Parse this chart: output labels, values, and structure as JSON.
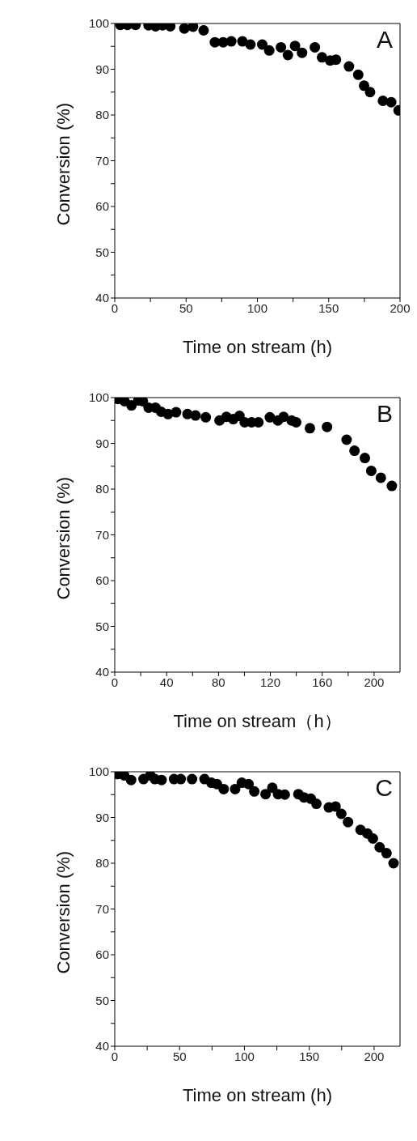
{
  "chart_data": [
    {
      "type": "scatter",
      "xlabel": "Time on stream (h)",
      "ylabel": "Conversion (%)",
      "annotations": [
        "A"
      ],
      "marker": "circle",
      "xlim": [
        0,
        200
      ],
      "xticks": [
        0,
        {
          "value": 25,
          "label": null
        },
        50,
        {
          "value": 75,
          "label": null
        },
        100,
        {
          "value": 125,
          "label": null
        },
        150,
        {
          "value": 175,
          "label": null
        },
        200
      ],
      "ylim": [
        40,
        100
      ],
      "yticks": [
        40,
        {
          "value": 45,
          "label": null
        },
        50,
        {
          "value": 55,
          "label": null
        },
        60,
        {
          "value": 65,
          "label": null
        },
        70,
        {
          "value": 75,
          "label": null
        },
        80,
        {
          "value": 85,
          "label": null
        },
        90,
        {
          "value": 95,
          "label": null
        },
        100
      ],
      "series": [
        {
          "color": "#000000",
          "x": [
            3.9,
            8.9,
            14.6,
            23.7,
            28.6,
            33.5,
            38.9,
            48.8,
            54.9,
            62.3,
            70.2,
            76.0,
            81.7,
            89.5,
            95.1,
            103.4,
            108.3,
            116.5,
            121.4,
            126.4,
            131.3,
            140.3,
            145.3,
            151.0,
            155.1,
            164.2,
            170.7,
            174.8,
            179.0,
            188.0,
            193.8,
            199
          ],
          "values": [
            99.7,
            99.7,
            99.7,
            99.6,
            99.4,
            99.6,
            99.4,
            98.9,
            99.3,
            98.5,
            95.9,
            95.9,
            96.1,
            96.1,
            95.4,
            95.4,
            94.1,
            94.8,
            93.1,
            95.1,
            93.6,
            94.8,
            92.6,
            91.9,
            92.1,
            90.6,
            88.8,
            86.4,
            85.0,
            83.1,
            82.8,
            81
          ]
        }
      ]
    },
    {
      "type": "scatter",
      "xlabel": "Time on stream（h）",
      "ylabel": "Conversion (%)",
      "annotations": [
        "B"
      ],
      "marker": "circle",
      "xlim": [
        0,
        220
      ],
      "xticks": [
        0,
        {
          "value": 20,
          "label": null
        },
        40,
        {
          "value": 60,
          "label": null
        },
        80,
        {
          "value": 100,
          "label": null
        },
        120,
        {
          "value": 140,
          "label": null
        },
        160,
        {
          "value": 180,
          "label": null
        },
        200
      ],
      "ylim": [
        40,
        100
      ],
      "yticks": [
        40,
        {
          "value": 45,
          "label": null
        },
        50,
        {
          "value": 55,
          "label": null
        },
        60,
        {
          "value": 65,
          "label": null
        },
        70,
        {
          "value": 75,
          "label": null
        },
        80,
        {
          "value": 85,
          "label": null
        },
        90,
        {
          "value": 95,
          "label": null
        },
        100
      ],
      "series": [
        {
          "color": "#000000",
          "x": [
            2.3,
            7.6,
            12.9,
            18.2,
            21.7,
            26.1,
            31.4,
            35.8,
            41.1,
            47.3,
            56.1,
            62.3,
            70.2,
            80.8,
            86.1,
            91.4,
            96.2,
            100.2,
            105.5,
            110.8,
            119.6,
            125.8,
            130.2,
            136.4,
            139.9,
            150.5,
            163.7,
            178.8,
            184.9,
            192.9,
            197.8,
            205.2,
            213.7
          ],
          "values": [
            99.7,
            99.2,
            98.3,
            99.4,
            99.2,
            97.8,
            97.8,
            96.9,
            96.4,
            96.8,
            96.4,
            96.1,
            95.7,
            95.0,
            95.8,
            95.3,
            96.0,
            94.6,
            94.6,
            94.6,
            95.7,
            95.0,
            95.8,
            95.0,
            94.6,
            93.3,
            93.6,
            90.8,
            88.4,
            86.8,
            84.0,
            82.5,
            80.7
          ]
        }
      ]
    },
    {
      "type": "scatter",
      "xlabel": "Time on stream (h)",
      "ylabel": "Conversion (%)",
      "annotations": [
        "C"
      ],
      "marker": "circle",
      "xlim": [
        0,
        220
      ],
      "xticks": [
        0,
        {
          "value": 25,
          "label": null
        },
        50,
        {
          "value": 75,
          "label": null
        },
        100,
        {
          "value": 125,
          "label": null
        },
        150,
        {
          "value": 175,
          "label": null
        },
        200
      ],
      "ylim": [
        40,
        100
      ],
      "yticks": [
        40,
        {
          "value": 45,
          "label": null
        },
        50,
        {
          "value": 55,
          "label": null
        },
        60,
        {
          "value": 65,
          "label": null
        },
        70,
        {
          "value": 75,
          "label": null
        },
        80,
        {
          "value": 85,
          "label": null
        },
        90,
        {
          "value": 95,
          "label": null
        },
        100
      ],
      "series": [
        {
          "color": "#000000",
          "x": [
            2.1,
            7.3,
            12.6,
            22.2,
            27.4,
            30.9,
            36.1,
            45.7,
            50.9,
            56.2,
            59.6,
            69.2,
            74.5,
            78.8,
            84.0,
            92.8,
            98.0,
            103.2,
            107.6,
            116.3,
            121.5,
            125.9,
            131.1,
            141.6,
            145.9,
            151.2,
            155.5,
            165.1,
            170.3,
            174.7,
            179.9,
            189.5,
            194.8,
            199.1,
            204.3,
            209.6,
            215
          ],
          "values": [
            99.5,
            99.2,
            98.2,
            98.4,
            99.2,
            98.4,
            98.2,
            98.4,
            98.4,
            null,
            98.4,
            98.4,
            97.6,
            97.3,
            96.2,
            96.2,
            97.6,
            97.3,
            95.7,
            95.1,
            96.5,
            95.1,
            95.0,
            95.1,
            94.4,
            94.1,
            93.0,
            92.2,
            92.4,
            90.8,
            89.0,
            87.3,
            86.5,
            85.4,
            83.5,
            82.2,
            80
          ]
        }
      ]
    }
  ]
}
